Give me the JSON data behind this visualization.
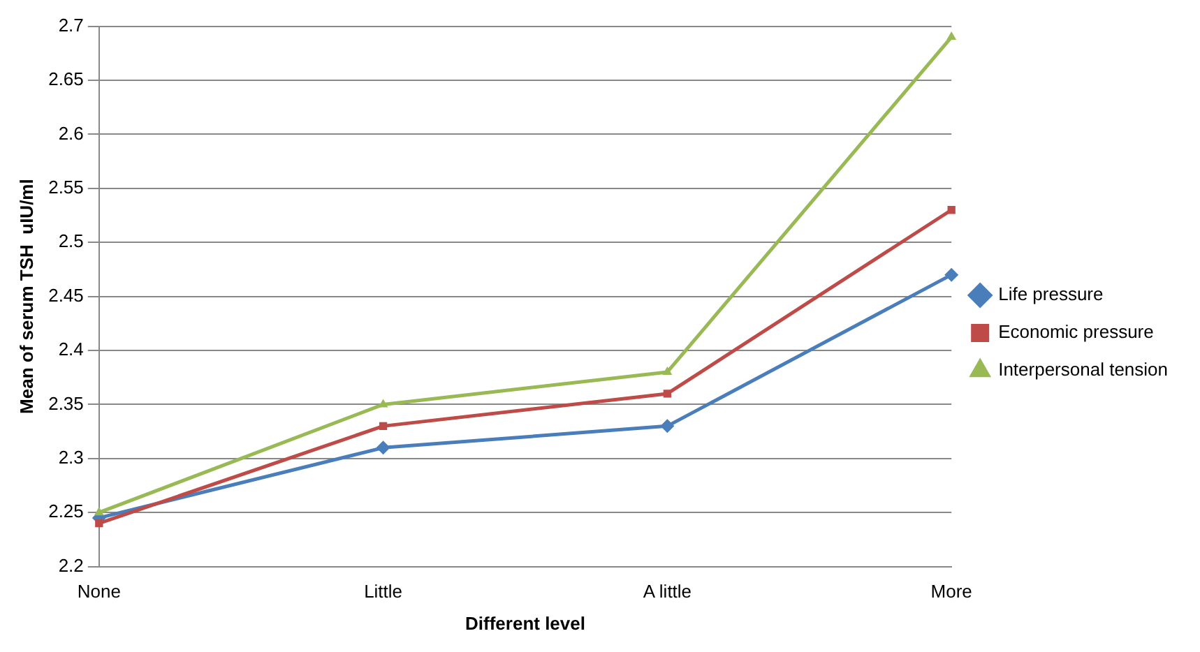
{
  "chart_data": {
    "type": "line",
    "xlabel": "Different level",
    "ylabel": "Mean of serum TSH  uIU/ml",
    "categories": [
      "None",
      "Little",
      "A little",
      "More"
    ],
    "series": [
      {
        "name": "Life pressure",
        "color": "#4a7ebb",
        "marker": "diamond",
        "values": [
          2.245,
          2.31,
          2.33,
          2.47
        ]
      },
      {
        "name": "Economic pressure",
        "color": "#be4b48",
        "marker": "square",
        "values": [
          2.24,
          2.33,
          2.36,
          2.53
        ]
      },
      {
        "name": "Interpersonal tension",
        "color": "#98b954",
        "marker": "triangle",
        "values": [
          2.25,
          2.35,
          2.38,
          2.69
        ]
      }
    ],
    "ylim": [
      2.2,
      2.7
    ],
    "yticks": [
      2.2,
      2.25,
      2.3,
      2.35,
      2.4,
      2.45,
      2.5,
      2.55,
      2.6,
      2.65,
      2.7
    ],
    "grid": "y",
    "legend": "right",
    "line_style": "solid"
  }
}
